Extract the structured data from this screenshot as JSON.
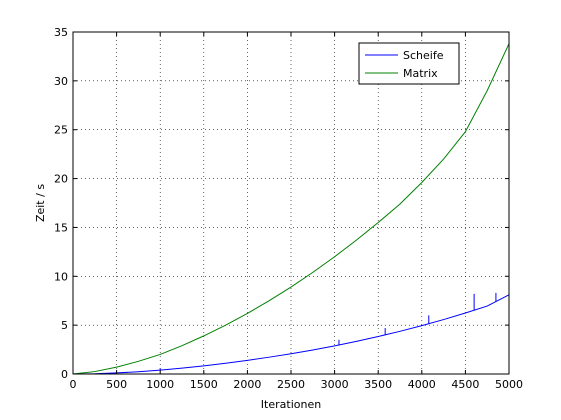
{
  "chart_data": {
    "type": "line",
    "xlabel": "Iterationen",
    "ylabel": "Zeit / s",
    "xlim": [
      0,
      5000
    ],
    "ylim": [
      0,
      35
    ],
    "xticks": [
      0,
      500,
      1000,
      1500,
      2000,
      2500,
      3000,
      3500,
      4000,
      4500,
      5000
    ],
    "yticks": [
      0,
      5,
      10,
      15,
      20,
      25,
      30,
      35
    ],
    "grid": true,
    "legend_position": "top-right",
    "x": [
      0,
      250,
      500,
      750,
      1000,
      1250,
      1500,
      1750,
      2000,
      2250,
      2500,
      2750,
      3000,
      3250,
      3500,
      3750,
      4000,
      4250,
      4500,
      4750,
      5000
    ],
    "series": [
      {
        "name": "Scheife",
        "color": "#0000ff",
        "values": [
          0,
          0.03,
          0.11,
          0.23,
          0.4,
          0.6,
          0.83,
          1.1,
          1.4,
          1.72,
          2.07,
          2.46,
          2.88,
          3.34,
          3.84,
          4.37,
          4.95,
          5.57,
          6.24,
          6.95,
          8.1
        ]
      },
      {
        "name": "Matrix",
        "color": "#008000",
        "values": [
          0,
          0.25,
          0.7,
          1.3,
          2.0,
          2.9,
          3.9,
          5.0,
          6.2,
          7.5,
          8.9,
          10.4,
          12.0,
          13.7,
          15.5,
          17.4,
          19.6,
          22.0,
          24.8,
          29.0,
          33.8
        ]
      }
    ],
    "spikes": {
      "Scheife": [
        {
          "x": 1000,
          "y": 0.6
        },
        {
          "x": 3050,
          "y": 3.5
        },
        {
          "x": 3580,
          "y": 4.7
        },
        {
          "x": 4080,
          "y": 6.0
        },
        {
          "x": 4600,
          "y": 8.2
        },
        {
          "x": 4850,
          "y": 8.3
        }
      ]
    }
  }
}
